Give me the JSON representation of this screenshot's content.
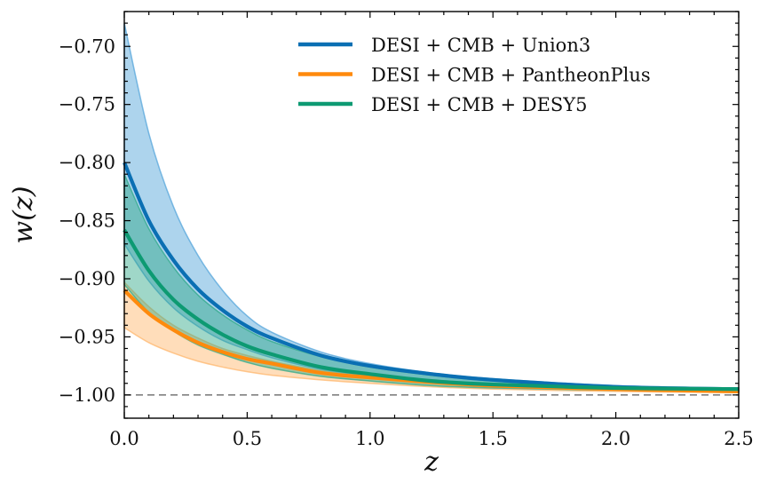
{
  "chart_data": {
    "type": "line",
    "title": "",
    "xlabel": "z",
    "ylabel": "w(z)",
    "xlim": [
      0,
      2.5
    ],
    "ylim": [
      -1.02,
      -0.67
    ],
    "xticks": [
      0.0,
      0.5,
      1.0,
      1.5,
      2.0,
      2.5
    ],
    "xtick_labels": [
      "0.0",
      "0.5",
      "1.0",
      "1.5",
      "2.0",
      "2.5"
    ],
    "yticks": [
      -1.0,
      -0.95,
      -0.9,
      -0.85,
      -0.8,
      -0.75,
      -0.7
    ],
    "ytick_labels": [
      "−1.00",
      "−0.95",
      "−0.90",
      "−0.85",
      "−0.80",
      "−0.75",
      "−0.70"
    ],
    "grid": false,
    "legend_position": "top-right",
    "reference_line": {
      "y": -1.0,
      "style": "dashed",
      "color": "#808080"
    },
    "x": [
      0,
      0.1,
      0.2,
      0.3,
      0.4,
      0.5,
      0.6,
      0.8,
      1.0,
      1.25,
      1.5,
      2.0,
      2.5
    ],
    "series": [
      {
        "name": "DESI + CMB + Union3",
        "color": "#0a6fb3",
        "fill": "#4a9fd8",
        "values": [
          -0.8,
          -0.85,
          -0.884,
          -0.909,
          -0.927,
          -0.941,
          -0.951,
          -0.966,
          -0.975,
          -0.982,
          -0.987,
          -0.993,
          -0.995
        ],
        "upper": [
          -0.68,
          -0.775,
          -0.838,
          -0.88,
          -0.91,
          -0.932,
          -0.946,
          -0.963,
          -0.973,
          -0.981,
          -0.986,
          -0.992,
          -0.994
        ],
        "lower": [
          -0.87,
          -0.902,
          -0.925,
          -0.941,
          -0.953,
          -0.961,
          -0.968,
          -0.978,
          -0.984,
          -0.989,
          -0.992,
          -0.995,
          -0.997
        ]
      },
      {
        "name": "DESI + CMB + PantheonPlus",
        "color": "#ff8a0d",
        "fill": "#ffb366",
        "values": [
          -0.91,
          -0.93,
          -0.944,
          -0.955,
          -0.963,
          -0.969,
          -0.973,
          -0.981,
          -0.985,
          -0.989,
          -0.992,
          -0.995,
          -0.997
        ],
        "upper": [
          -0.903,
          -0.924,
          -0.94,
          -0.951,
          -0.96,
          -0.966,
          -0.971,
          -0.979,
          -0.984,
          -0.988,
          -0.991,
          -0.994,
          -0.996
        ],
        "lower": [
          -0.942,
          -0.955,
          -0.964,
          -0.971,
          -0.976,
          -0.98,
          -0.983,
          -0.987,
          -0.99,
          -0.993,
          -0.995,
          -0.997,
          -0.998
        ]
      },
      {
        "name": "DESI + CMB + DESY5",
        "color": "#0d9a72",
        "fill": "#2aa784",
        "values": [
          -0.858,
          -0.893,
          -0.918,
          -0.935,
          -0.948,
          -0.958,
          -0.965,
          -0.976,
          -0.982,
          -0.988,
          -0.991,
          -0.994,
          -0.995
        ],
        "upper": [
          -0.81,
          -0.857,
          -0.89,
          -0.914,
          -0.931,
          -0.944,
          -0.954,
          -0.967,
          -0.976,
          -0.983,
          -0.988,
          -0.993,
          -0.994
        ],
        "lower": [
          -0.905,
          -0.929,
          -0.945,
          -0.957,
          -0.965,
          -0.972,
          -0.977,
          -0.984,
          -0.988,
          -0.992,
          -0.994,
          -0.996,
          -0.997
        ]
      }
    ]
  }
}
